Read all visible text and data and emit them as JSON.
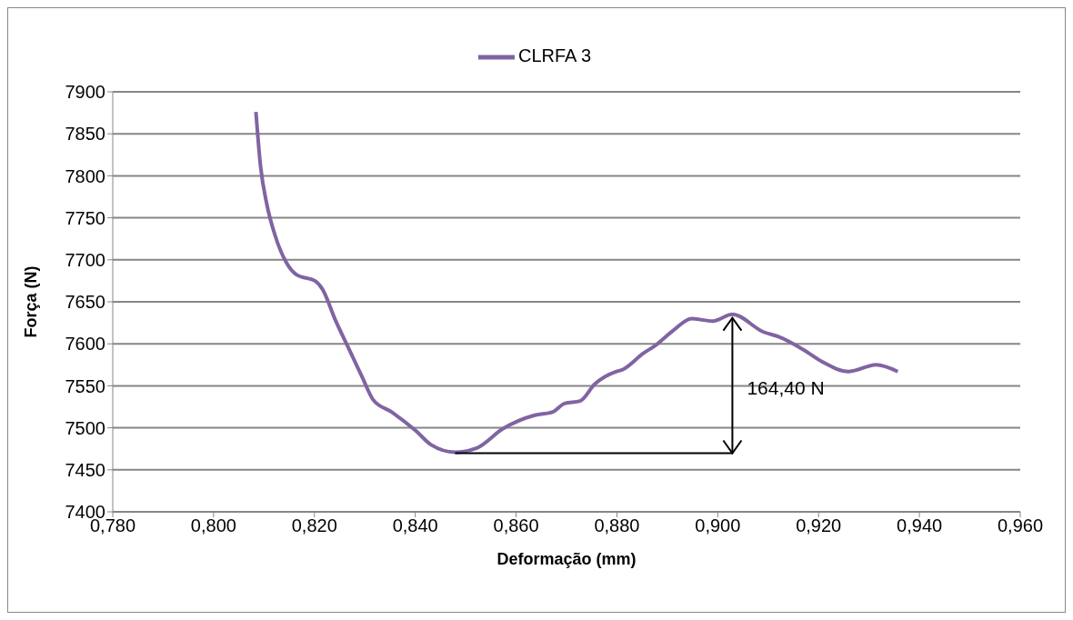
{
  "chart_data": {
    "type": "line",
    "xlabel": "Deformação (mm)",
    "ylabel": "Força (N)",
    "series": [
      {
        "name": "CLRFA 3",
        "color": "#8064a2",
        "x": [
          0.8084,
          0.8093,
          0.8106,
          0.8122,
          0.8144,
          0.8165,
          0.8201,
          0.8216,
          0.8241,
          0.827,
          0.8295,
          0.8317,
          0.8353,
          0.8402,
          0.8431,
          0.8479,
          0.8522,
          0.8574,
          0.8637,
          0.8673,
          0.8696,
          0.8727,
          0.8756,
          0.8799,
          0.881,
          0.8853,
          0.8876,
          0.8912,
          0.8948,
          0.899,
          0.9029,
          0.9091,
          0.9123,
          0.917,
          0.9206,
          0.926,
          0.9314,
          0.9357
        ],
        "values": [
          7876,
          7812,
          7765,
          7729,
          7697,
          7682,
          7675,
          7665,
          7629,
          7592,
          7560,
          7533,
          7519,
          7496,
          7480,
          7471,
          7476,
          7499,
          7515,
          7519,
          7529,
          7532,
          7552,
          7567,
          7569,
          7589,
          7598,
          7616,
          7630,
          7627,
          7635,
          7614,
          7608,
          7593,
          7579,
          7567,
          7575,
          7567
        ]
      }
    ],
    "xlim": [
      0.78,
      0.96
    ],
    "xticks": [
      {
        "value": 0.78,
        "label": "0,780"
      },
      {
        "value": 0.8,
        "label": "0,800"
      },
      {
        "value": 0.82,
        "label": "0,820"
      },
      {
        "value": 0.84,
        "label": "0,840"
      },
      {
        "value": 0.86,
        "label": "0,860"
      },
      {
        "value": 0.88,
        "label": "0,880"
      },
      {
        "value": 0.9,
        "label": "0,900"
      },
      {
        "value": 0.92,
        "label": "0,920"
      },
      {
        "value": 0.94,
        "label": "0,940"
      },
      {
        "value": 0.96,
        "label": "0,960"
      }
    ],
    "ylim": [
      7400,
      7900
    ],
    "yticks": [
      7400,
      7450,
      7500,
      7550,
      7600,
      7650,
      7700,
      7750,
      7800,
      7850,
      7900
    ],
    "grid": "y",
    "legend": "top",
    "marker": "none",
    "line_style": "solid",
    "annotations": [
      "164,40 N"
    ]
  }
}
